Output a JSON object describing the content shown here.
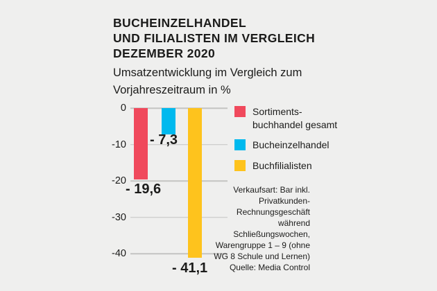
{
  "background": "#efefee",
  "header": {
    "title": "BUCHEINZELHANDEL\nUND FILIALISTEN IM VERGLEICH\nDEZEMBER 2020",
    "subtitle": "Umsatzentwicklung im Vergleich zum\nVorjahreszeitraum in %"
  },
  "chart": {
    "ticks": [
      "0",
      "-10",
      "-20",
      "-30",
      "-40"
    ],
    "bars": [
      {
        "name": "Sortimentsbuchhandel gesamt",
        "label": "- 19,6",
        "color": "#f0495c"
      },
      {
        "name": "Bucheinzelhandel",
        "label": "- 7,3",
        "color": "#00b9ee"
      },
      {
        "name": "Buchfilialisten",
        "label": "- 41,1",
        "color": "#fec31d"
      }
    ],
    "gridline_color": "#c4c4c2"
  },
  "legend": {
    "items": [
      {
        "label": "Sortiments-\nbuchhandel gesamt",
        "color": "#f0495c"
      },
      {
        "label": "Bucheinzelhandel",
        "color": "#00b9ee"
      },
      {
        "label": "Buchfilialisten",
        "color": "#fec31d"
      }
    ]
  },
  "footnote": "Verkaufsart: Bar inkl.\nPrivatkunden-\nRechnungsgeschäft\nwährend\nSchließungswochen,\nWarengruppe 1 – 9 (ohne\nWG 8 Schule und Lernen)\nQuelle: Media Control",
  "chart_data": {
    "type": "bar",
    "categories": [
      "Sortimentsbuchhandel gesamt",
      "Bucheinzelhandel",
      "Buchfilialisten"
    ],
    "values": [
      -19.6,
      -7.3,
      -41.1
    ],
    "value_labels": [
      "- 19,6",
      "- 7,3",
      "- 41,1"
    ],
    "title": "Bucheinzelhandel und Filialisten im Vergleich Dezember 2020",
    "subtitle": "Umsatzentwicklung im Vergleich zum Vorjahreszeitraum in %",
    "xlabel": "",
    "ylabel": "",
    "ylim": [
      -45,
      0
    ],
    "yticks": [
      0,
      -10,
      -20,
      -30,
      -40
    ],
    "grid": true,
    "legend_position": "right",
    "colors": [
      "#f0495c",
      "#00b9ee",
      "#fec31d"
    ],
    "source": "Quelle: Media Control"
  }
}
